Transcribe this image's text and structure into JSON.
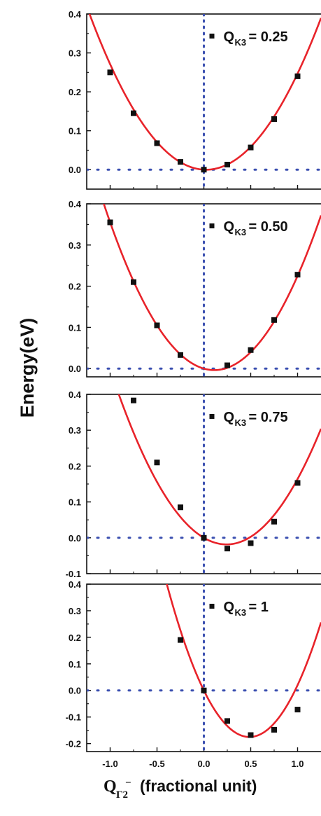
{
  "colors": {
    "fit": "#e8232a",
    "points": "#111111",
    "guides": "#3a4fb0",
    "axes": "#111111"
  },
  "y_axis_title": "Energy(eV)",
  "x_axis_title": {
    "main": "Q",
    "sub": "Γ2",
    "sup": "−",
    "rest": "(fractional  unit)"
  },
  "chart_data": [
    {
      "type": "scatter",
      "legend": {
        "prefix": "Q",
        "sub": "K3",
        "value": "= 0.25"
      },
      "xlim": [
        -1.25,
        1.25
      ],
      "ylim": [
        -0.05,
        0.4
      ],
      "yticks": [
        0.0,
        0.1,
        0.2,
        0.3,
        0.4
      ],
      "ytick_labels": [
        "0.0",
        "0.1",
        "0.2",
        "0.3",
        "0.4"
      ],
      "series": [
        {
          "kind": "points",
          "x": [
            -1.0,
            -0.75,
            -0.5,
            -0.25,
            0.0,
            0.25,
            0.5,
            0.75,
            1.0
          ],
          "y": [
            0.25,
            0.145,
            0.068,
            0.02,
            0.0,
            0.013,
            0.057,
            0.13,
            0.24
          ]
        },
        {
          "kind": "fit",
          "a": 0.259,
          "b": -0.012,
          "c": 0.0
        }
      ]
    },
    {
      "type": "scatter",
      "legend": {
        "prefix": "Q",
        "sub": "K3",
        "value": "= 0.50"
      },
      "xlim": [
        -1.25,
        1.25
      ],
      "ylim": [
        -0.02,
        0.4
      ],
      "yticks": [
        0.0,
        0.1,
        0.2,
        0.3,
        0.4
      ],
      "ytick_labels": [
        "0.0",
        "0.1",
        "0.2",
        "0.3",
        "0.4"
      ],
      "series": [
        {
          "kind": "points",
          "x": [
            -1.0,
            -0.75,
            -0.5,
            -0.25,
            0.25,
            0.5,
            0.75,
            1.0
          ],
          "y": [
            0.355,
            0.21,
            0.105,
            0.033,
            0.008,
            0.045,
            0.118,
            0.228
          ]
        },
        {
          "kind": "fit",
          "a": 0.29,
          "b": -0.065,
          "c": 0.0
        }
      ]
    },
    {
      "type": "scatter",
      "legend": {
        "prefix": "Q",
        "sub": "K3",
        "value": "= 0.75"
      },
      "xlim": [
        -1.25,
        1.25
      ],
      "ylim": [
        -0.1,
        0.4
      ],
      "yticks": [
        -0.1,
        0.0,
        0.1,
        0.2,
        0.3,
        0.4
      ],
      "ytick_labels": [
        "-0.1",
        "0.0",
        "0.1",
        "0.2",
        "0.3",
        "0.4"
      ],
      "series": [
        {
          "kind": "points",
          "x": [
            -0.75,
            -0.5,
            -0.25,
            0.0,
            0.25,
            0.5,
            0.75,
            1.0
          ],
          "y": [
            0.383,
            0.21,
            0.085,
            0.0,
            -0.03,
            -0.015,
            0.045,
            0.153
          ]
        },
        {
          "kind": "fit",
          "a": 0.317,
          "b": -0.153,
          "c": 0.0
        }
      ]
    },
    {
      "type": "scatter",
      "legend": {
        "prefix": "Q",
        "sub": "K3",
        "value": "= 1"
      },
      "xlim": [
        -1.25,
        1.25
      ],
      "ylim": [
        -0.23,
        0.4
      ],
      "yticks": [
        -0.2,
        -0.1,
        0.0,
        0.1,
        0.2,
        0.3,
        0.4
      ],
      "ytick_labels": [
        "-0.2",
        "-0.1",
        "0.0",
        "0.1",
        "0.2",
        "0.3",
        "0.4"
      ],
      "xticks": [
        -1.0,
        -0.5,
        0.0,
        0.5,
        1.0
      ],
      "xtick_labels": [
        "-1.0",
        "-0.5",
        "0.0",
        "0.5",
        "1.0"
      ],
      "series": [
        {
          "kind": "points",
          "x": [
            -0.25,
            0.0,
            0.25,
            0.5,
            0.75,
            1.0
          ],
          "y": [
            0.19,
            0.0,
            -0.115,
            -0.168,
            -0.148,
            -0.072
          ]
        },
        {
          "kind": "fit",
          "a": 0.74,
          "b": -0.72,
          "c": 0.0
        }
      ]
    }
  ]
}
